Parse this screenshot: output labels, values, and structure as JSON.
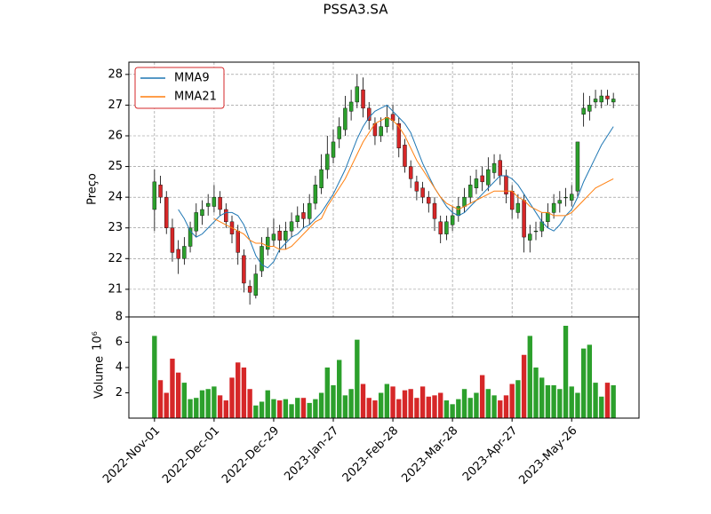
{
  "chart_data": {
    "type": "candlestick",
    "title": "PSSA3.SA",
    "y_label": "Preço",
    "volume_label": "Volume",
    "volume_offset": "10⁶",
    "categories": [
      "2022-Nov-01",
      null,
      null,
      null,
      null,
      null,
      null,
      null,
      null,
      null,
      "2022-Dec-01",
      null,
      null,
      null,
      null,
      null,
      null,
      null,
      null,
      null,
      "2022-Dec-29",
      null,
      null,
      null,
      null,
      null,
      null,
      null,
      null,
      null,
      "2023-Jan-27",
      null,
      null,
      null,
      null,
      null,
      null,
      null,
      null,
      null,
      "2023-Feb-28",
      null,
      null,
      null,
      null,
      null,
      null,
      null,
      null,
      null,
      "2023-Mar-28",
      null,
      null,
      null,
      null,
      null,
      null,
      null,
      null,
      null,
      "2023-Apr-27",
      null,
      null,
      null,
      null,
      null,
      null,
      null,
      null,
      null,
      "2023-May-26",
      null,
      null,
      null,
      null,
      null,
      null,
      null
    ],
    "open": [
      23.6,
      24.4,
      24.0,
      23.0,
      22.3,
      22.0,
      22.4,
      22.9,
      23.4,
      23.7,
      23.7,
      24.0,
      23.6,
      23.2,
      22.9,
      22.1,
      21.1,
      20.8,
      21.6,
      22.3,
      22.6,
      22.9,
      22.6,
      22.9,
      23.2,
      23.5,
      23.3,
      23.8,
      24.3,
      24.9,
      25.3,
      25.9,
      26.2,
      26.8,
      27.1,
      27.5,
      26.9,
      26.4,
      26.0,
      26.3,
      26.7,
      26.4,
      25.7,
      25.0,
      24.5,
      24.3,
      24.0,
      23.8,
      23.2,
      22.8,
      23.1,
      23.4,
      23.7,
      24.0,
      24.3,
      24.7,
      24.4,
      24.8,
      25.2,
      24.7,
      24.2,
      23.5,
      23.9,
      22.6,
      22.9,
      22.9,
      23.2,
      23.5,
      23.8,
      24.0,
      23.9,
      24.2,
      26.7,
      26.8,
      27.1,
      27.1,
      27.3,
      27.1
    ],
    "high": [
      24.9,
      24.7,
      24.2,
      23.3,
      22.6,
      22.7,
      23.2,
      23.8,
      23.9,
      24.1,
      24.4,
      24.2,
      23.8,
      23.4,
      23.1,
      22.3,
      21.3,
      21.8,
      22.7,
      23.0,
      23.3,
      23.1,
      23.2,
      23.5,
      23.7,
      23.8,
      24.1,
      24.7,
      25.4,
      26.0,
      26.2,
      26.6,
      27.3,
      27.5,
      28.0,
      27.9,
      27.1,
      26.6,
      26.6,
      27.0,
      27.0,
      26.6,
      25.9,
      25.2,
      24.7,
      24.5,
      24.2,
      24.0,
      23.4,
      23.4,
      23.7,
      24.0,
      24.3,
      24.7,
      24.9,
      25.0,
      25.3,
      25.4,
      25.4,
      24.9,
      24.4,
      24.1,
      24.1,
      23.1,
      23.2,
      23.5,
      23.8,
      24.1,
      24.2,
      24.3,
      24.4,
      25.8,
      27.4,
      27.3,
      27.5,
      27.5,
      27.5,
      27.4
    ],
    "low": [
      22.9,
      23.8,
      22.8,
      21.9,
      21.5,
      21.8,
      22.2,
      22.7,
      23.1,
      23.4,
      23.5,
      23.4,
      23.0,
      22.5,
      21.8,
      20.9,
      20.5,
      20.7,
      21.4,
      22.1,
      22.4,
      22.2,
      22.3,
      22.7,
      23.0,
      23.0,
      23.1,
      23.6,
      24.1,
      24.6,
      25.1,
      25.6,
      26.0,
      26.5,
      26.9,
      26.6,
      26.2,
      25.7,
      25.8,
      26.1,
      26.2,
      25.3,
      24.8,
      24.3,
      23.9,
      23.8,
      23.5,
      22.9,
      22.5,
      22.6,
      22.9,
      23.2,
      23.5,
      23.8,
      24.1,
      24.2,
      24.2,
      24.6,
      24.4,
      23.8,
      23.3,
      23.3,
      22.2,
      22.2,
      22.6,
      22.7,
      23.0,
      23.3,
      23.5,
      23.7,
      23.7,
      24.0,
      26.3,
      26.5,
      26.9,
      26.9,
      27.0,
      26.9
    ],
    "close": [
      24.5,
      24.0,
      23.0,
      22.2,
      22.0,
      22.4,
      23.0,
      23.5,
      23.6,
      23.8,
      24.0,
      23.6,
      23.2,
      22.8,
      22.2,
      21.2,
      20.9,
      21.5,
      22.4,
      22.7,
      22.8,
      22.6,
      22.9,
      23.2,
      23.4,
      23.3,
      23.8,
      24.4,
      24.9,
      25.4,
      25.8,
      26.3,
      26.9,
      27.1,
      27.6,
      26.9,
      26.5,
      26.0,
      26.3,
      26.6,
      26.5,
      25.6,
      25.0,
      24.6,
      24.2,
      24.0,
      23.8,
      23.3,
      22.8,
      23.2,
      23.4,
      23.7,
      24.0,
      24.4,
      24.6,
      24.5,
      24.9,
      25.1,
      24.7,
      24.1,
      23.6,
      23.8,
      22.7,
      22.8,
      22.9,
      23.2,
      23.5,
      23.8,
      23.9,
      24.0,
      24.1,
      25.8,
      26.9,
      27.0,
      27.2,
      27.3,
      27.2,
      27.2
    ],
    "volume": [
      6.5,
      3.0,
      2.0,
      4.7,
      3.6,
      2.8,
      1.5,
      1.6,
      2.2,
      2.3,
      2.5,
      1.8,
      1.4,
      3.2,
      4.4,
      4.0,
      2.3,
      1.0,
      1.3,
      2.2,
      1.5,
      1.4,
      1.5,
      1.1,
      1.6,
      1.6,
      1.2,
      1.5,
      2.0,
      4.0,
      2.6,
      4.6,
      1.8,
      2.3,
      6.2,
      2.7,
      1.6,
      1.4,
      2.0,
      2.7,
      2.5,
      1.5,
      2.2,
      2.3,
      1.6,
      2.5,
      1.7,
      1.8,
      2.0,
      1.4,
      1.1,
      1.5,
      2.3,
      1.6,
      2.0,
      3.4,
      2.3,
      1.8,
      1.4,
      1.8,
      2.7,
      3.0,
      5.0,
      6.5,
      4.0,
      3.2,
      2.6,
      2.6,
      2.3,
      7.3,
      2.5,
      2.0,
      5.5,
      5.8,
      2.8,
      1.7,
      2.8,
      2.6
    ],
    "up_color": "#2ca02c",
    "down_color": "#d62728",
    "series": [
      {
        "name": "MMA9",
        "color": "#1f77b4",
        "values": [
          null,
          null,
          null,
          null,
          23.6,
          23.3,
          22.9,
          22.7,
          22.8,
          23.0,
          23.2,
          23.4,
          23.5,
          23.5,
          23.4,
          23.1,
          22.6,
          22.1,
          21.8,
          21.7,
          21.9,
          22.3,
          22.5,
          22.7,
          22.8,
          23.0,
          23.1,
          23.3,
          23.5,
          23.8,
          24.1,
          24.5,
          24.9,
          25.4,
          25.9,
          26.3,
          26.6,
          26.8,
          26.9,
          27.0,
          26.8,
          26.6,
          26.4,
          26.1,
          25.6,
          25.1,
          24.7,
          24.3,
          24.0,
          23.7,
          23.5,
          23.4,
          23.5,
          23.7,
          23.9,
          24.1,
          24.3,
          24.5,
          24.7,
          24.7,
          24.6,
          24.4,
          24.1,
          23.8,
          23.5,
          23.2,
          23.0,
          22.9,
          23.1,
          23.4,
          23.6,
          24.0,
          24.5,
          24.9,
          25.3,
          25.7,
          26.0,
          26.3
        ]
      },
      {
        "name": "MMA21",
        "color": "#ff7f0e",
        "values": [
          null,
          null,
          null,
          null,
          null,
          null,
          null,
          null,
          null,
          null,
          23.3,
          23.2,
          23.1,
          23.0,
          22.9,
          22.8,
          22.6,
          22.5,
          22.5,
          22.4,
          22.4,
          22.3,
          22.3,
          22.4,
          22.6,
          22.8,
          23.0,
          23.2,
          23.3,
          23.7,
          24.0,
          24.3,
          24.6,
          25.0,
          25.4,
          25.8,
          26.1,
          26.4,
          26.5,
          26.6,
          26.5,
          26.3,
          26.0,
          25.6,
          25.2,
          24.9,
          24.6,
          24.3,
          24.0,
          23.8,
          23.7,
          23.6,
          23.7,
          23.8,
          23.9,
          24.0,
          24.1,
          24.2,
          24.2,
          24.2,
          24.2,
          24.0,
          23.9,
          23.7,
          23.6,
          23.5,
          23.5,
          23.4,
          23.4,
          23.4,
          23.5,
          23.7,
          23.9,
          24.1,
          24.3,
          24.4,
          24.5,
          24.6
        ]
      }
    ],
    "xlim": [
      -4.3,
      81.3
    ],
    "ylim": [
      20.1,
      28.4
    ],
    "yticks": [
      21,
      22,
      23,
      24,
      25,
      26,
      27,
      28
    ],
    "volume_ylim": [
      0,
      8
    ],
    "volume_yticks": [
      2,
      4,
      6,
      8
    ],
    "grid": true,
    "legend": "upper left"
  }
}
